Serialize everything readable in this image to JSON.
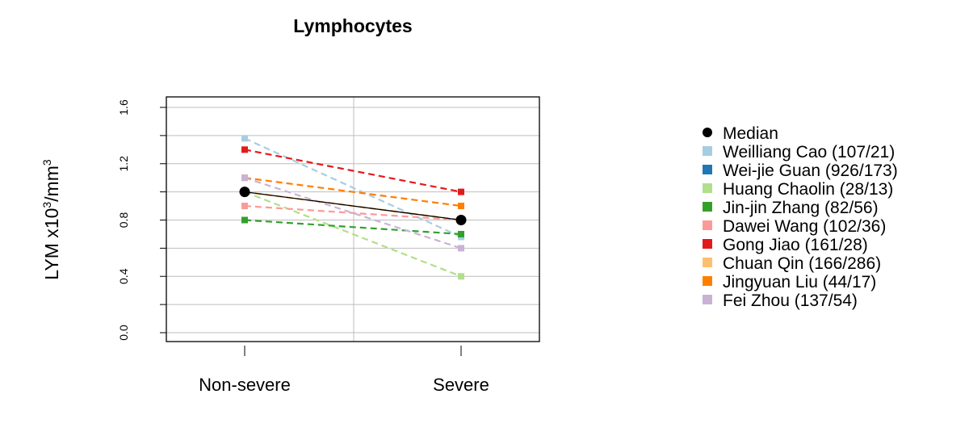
{
  "chart_data": {
    "type": "line",
    "title": "Lymphocytes",
    "ylabel_main": "LYM x10",
    "ylabel_sup1": "3",
    "ylabel_mid": "/mm",
    "ylabel_sup2": "3",
    "xlabel": "",
    "categories": [
      "Non-severe",
      "Severe"
    ],
    "ylim": [
      0,
      1.6
    ],
    "yticks": [
      "0.0",
      "0.4",
      "0.8",
      "1.2",
      "1.6"
    ],
    "ytick_values": [
      0,
      0.4,
      0.8,
      1.2,
      1.6
    ],
    "grid": true,
    "legend_position": "right",
    "median": {
      "name": "Median",
      "values": [
        1.0,
        0.8
      ],
      "color": "#000000"
    },
    "series": [
      {
        "name": "Weilliang Cao (107/21)",
        "values": [
          1.38,
          0.68
        ],
        "color": "#A6CEE3"
      },
      {
        "name": "Wei-jie Guan (926/173)",
        "values": [
          null,
          null
        ],
        "color": "#1F78B4"
      },
      {
        "name": "Huang Chaolin (28/13)",
        "values": [
          1.0,
          0.4
        ],
        "color": "#B2DF8A"
      },
      {
        "name": "Jin-jin Zhang (82/56)",
        "values": [
          0.8,
          0.7
        ],
        "color": "#33A02C"
      },
      {
        "name": "Dawei Wang (102/36)",
        "values": [
          0.9,
          0.8
        ],
        "color": "#FB9A99"
      },
      {
        "name": "Gong Jiao (161/28)",
        "values": [
          1.3,
          1.0
        ],
        "color": "#E31A1C"
      },
      {
        "name": "Chuan Qin (166/286)",
        "values": [
          1.0,
          0.8
        ],
        "color": "#FDBF6F"
      },
      {
        "name": "Jingyuan Liu (44/17)",
        "values": [
          1.1,
          0.9
        ],
        "color": "#FF7F00"
      },
      {
        "name": "Fei Zhou (137/54)",
        "values": [
          1.1,
          0.6
        ],
        "color": "#CAB2D6"
      }
    ]
  }
}
